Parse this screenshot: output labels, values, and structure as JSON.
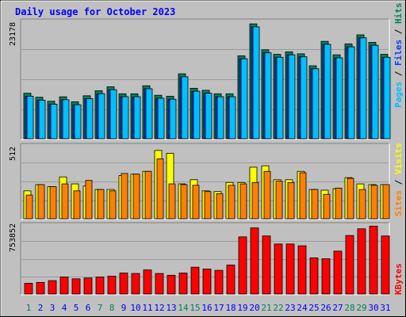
{
  "title": "Daily usage for October 2023",
  "colors": {
    "background": "#c0c0c0",
    "title_text": "#0000ff",
    "grid": "#9c9c9c",
    "hits": "#00805c",
    "files": "#0040ff",
    "pages": "#00c0ff",
    "visits": "#ffff00",
    "sites": "#ff8000",
    "kbytes": "#ff0000",
    "weekday_label": "#0000ff",
    "weekend_label": "#00805c",
    "separator": "#000000"
  },
  "chart_data": [
    {
      "type": "bar",
      "title": "Daily usage for October 2023",
      "axis_max_label": "23178",
      "ylim": [
        0,
        23178
      ],
      "legend": "right",
      "legend_entries": [
        "Pages",
        "Files",
        "Hits"
      ],
      "categories": [
        "1",
        "2",
        "3",
        "4",
        "5",
        "6",
        "7",
        "8",
        "9",
        "10",
        "11",
        "12",
        "13",
        "14",
        "15",
        "16",
        "17",
        "18",
        "19",
        "20",
        "21",
        "22",
        "23",
        "24",
        "25",
        "26",
        "27",
        "28",
        "29",
        "30",
        "31"
      ],
      "series": [
        {
          "name": "Hits",
          "values": [
            9100,
            8300,
            7500,
            8400,
            7400,
            8600,
            9600,
            10400,
            9000,
            9000,
            10600,
            8700,
            8500,
            13000,
            10100,
            9700,
            9000,
            9000,
            16600,
            23000,
            17800,
            16900,
            17400,
            17000,
            14600,
            19500,
            16800,
            19000,
            20800,
            19300,
            16900
          ]
        },
        {
          "name": "Files",
          "values": [
            8500,
            7700,
            6900,
            7800,
            6800,
            8000,
            9000,
            9800,
            8400,
            8400,
            10000,
            8100,
            7900,
            12400,
            9500,
            9100,
            8400,
            8400,
            16000,
            22400,
            17200,
            16300,
            16800,
            16400,
            14000,
            18900,
            16200,
            18400,
            20200,
            18700,
            16300
          ]
        },
        {
          "name": "Pages",
          "values": [
            8500,
            7700,
            6900,
            7800,
            6800,
            8000,
            9000,
            9800,
            8400,
            8400,
            10000,
            8100,
            7900,
            12400,
            9500,
            9100,
            8400,
            8400,
            16000,
            22400,
            17200,
            16300,
            16800,
            16400,
            14000,
            18900,
            16200,
            18400,
            20200,
            18700,
            16300
          ]
        }
      ]
    },
    {
      "type": "bar",
      "axis_max_label": "512",
      "ylim": [
        0,
        512
      ],
      "legend": "right",
      "legend_entries": [
        "Sites",
        "Visits"
      ],
      "categories": [
        "1",
        "2",
        "3",
        "4",
        "5",
        "6",
        "7",
        "8",
        "9",
        "10",
        "11",
        "12",
        "13",
        "14",
        "15",
        "16",
        "17",
        "18",
        "19",
        "20",
        "21",
        "22",
        "23",
        "24",
        "25",
        "26",
        "27",
        "28",
        "29",
        "30",
        "31"
      ],
      "series": [
        {
          "name": "Visits",
          "values": [
            200,
            245,
            230,
            300,
            250,
            235,
            210,
            210,
            310,
            320,
            340,
            490,
            470,
            250,
            280,
            200,
            195,
            260,
            260,
            370,
            380,
            280,
            280,
            340,
            210,
            205,
            215,
            295,
            250,
            245,
            245
          ]
        },
        {
          "name": "Sites",
          "values": [
            170,
            245,
            230,
            250,
            200,
            275,
            210,
            200,
            325,
            320,
            340,
            430,
            250,
            245,
            240,
            195,
            180,
            240,
            250,
            260,
            340,
            270,
            260,
            330,
            210,
            175,
            220,
            290,
            210,
            240,
            245
          ]
        }
      ]
    },
    {
      "type": "bar",
      "axis_max_label": "753852",
      "ylim": [
        0,
        753852
      ],
      "legend": "right",
      "legend_entries": [
        "KBytes"
      ],
      "categories": [
        "1",
        "2",
        "3",
        "4",
        "5",
        "6",
        "7",
        "8",
        "9",
        "10",
        "11",
        "12",
        "13",
        "14",
        "15",
        "16",
        "17",
        "18",
        "19",
        "20",
        "21",
        "22",
        "23",
        "24",
        "25",
        "26",
        "27",
        "28",
        "29",
        "30",
        "31"
      ],
      "series": [
        {
          "name": "KBytes",
          "values": [
            120000,
            130000,
            150000,
            190000,
            170000,
            180000,
            190000,
            200000,
            235000,
            230000,
            270000,
            230000,
            210000,
            235000,
            300000,
            280000,
            265000,
            325000,
            640000,
            740000,
            650000,
            560000,
            560000,
            540000,
            405000,
            395000,
            480000,
            655000,
            730000,
            760000,
            650000
          ]
        }
      ]
    }
  ],
  "legend_labels": {
    "pages": "Pages",
    "files": "Files",
    "hits": "Hits",
    "sites": "Sites",
    "visits": "Visits",
    "kbytes": "KBytes",
    "slash": "/"
  },
  "weekend_days": [
    "1",
    "7",
    "8",
    "14",
    "15",
    "21",
    "22",
    "28",
    "29"
  ]
}
